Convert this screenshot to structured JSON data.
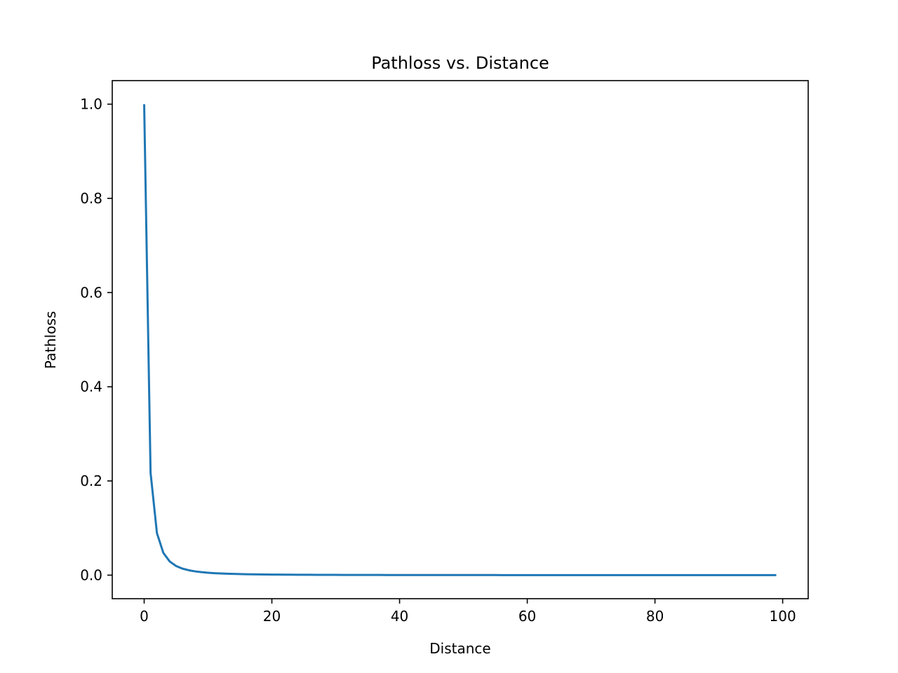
{
  "chart_data": {
    "type": "line",
    "title": "Pathloss vs. Distance",
    "xlabel": "Distance",
    "ylabel": "Pathloss",
    "xlim": [
      -5,
      104
    ],
    "ylim": [
      -0.05,
      1.05
    ],
    "xticks": [
      0,
      20,
      40,
      60,
      80,
      100
    ],
    "xtick_labels": [
      "0",
      "20",
      "40",
      "60",
      "80",
      "100"
    ],
    "yticks": [
      0.0,
      0.2,
      0.4,
      0.6,
      0.8,
      1.0
    ],
    "ytick_labels": [
      "0.0",
      "0.2",
      "0.4",
      "0.6",
      "0.8",
      "1.0"
    ],
    "grid": false,
    "series": [
      {
        "color": "#1f77b4",
        "model": "1/(1+x)^2.2",
        "x_range": [
          0,
          99
        ],
        "x_step": 1
      }
    ]
  }
}
